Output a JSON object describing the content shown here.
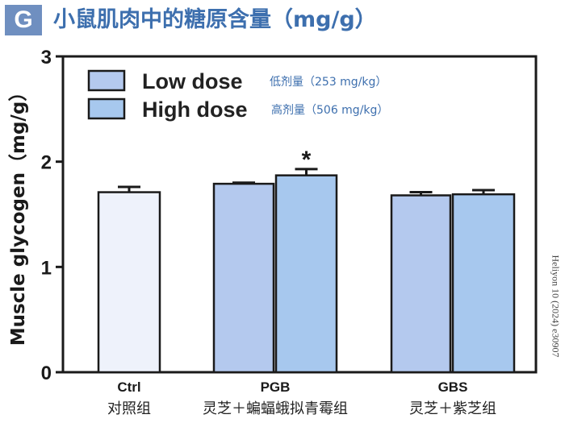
{
  "header": {
    "panel_letter": "G",
    "title": "小鼠肌肉中的糖原含量（mg/g）"
  },
  "watermark": "Heliyon 10 (2024) e30907",
  "chart_data": {
    "type": "bar",
    "ylabel": "Muscle glycogen（mg/g）",
    "ylim": [
      0,
      3
    ],
    "yticks": [
      "0",
      "1",
      "2",
      "3"
    ],
    "categories": [
      {
        "label": "Ctrl",
        "sublabel": "对照组"
      },
      {
        "label": "PGB",
        "sublabel": "灵芝＋蝙蝠蛾拟青霉组"
      },
      {
        "label": "GBS",
        "sublabel": "灵芝＋紫芝组"
      }
    ],
    "bars": [
      {
        "group": "Ctrl",
        "series": "control",
        "value": 1.71,
        "error": 0.05,
        "color": "#eef2fb"
      },
      {
        "group": "PGB",
        "series": "Low dose",
        "value": 1.79,
        "error": 0.01,
        "color": "#b4c9ee"
      },
      {
        "group": "PGB",
        "series": "High dose",
        "value": 1.87,
        "error": 0.06,
        "color": "#a7c8ee",
        "annotation": "*"
      },
      {
        "group": "GBS",
        "series": "Low dose",
        "value": 1.68,
        "error": 0.03,
        "color": "#b4c9ee"
      },
      {
        "group": "GBS",
        "series": "High dose",
        "value": 1.69,
        "error": 0.04,
        "color": "#a7c8ee"
      }
    ],
    "legend": {
      "position": "top-left",
      "items": [
        {
          "name": "Low dose",
          "note": "低剂量（253 mg/kg）",
          "color": "#b4c9ee"
        },
        {
          "name": "High dose",
          "note": "高剂量（506 mg/kg）",
          "color": "#a7c8ee"
        }
      ]
    },
    "colors": {
      "axis": "#1a1a1a",
      "note_text": "#3d6fae",
      "title_text": "#3d6fae"
    }
  }
}
